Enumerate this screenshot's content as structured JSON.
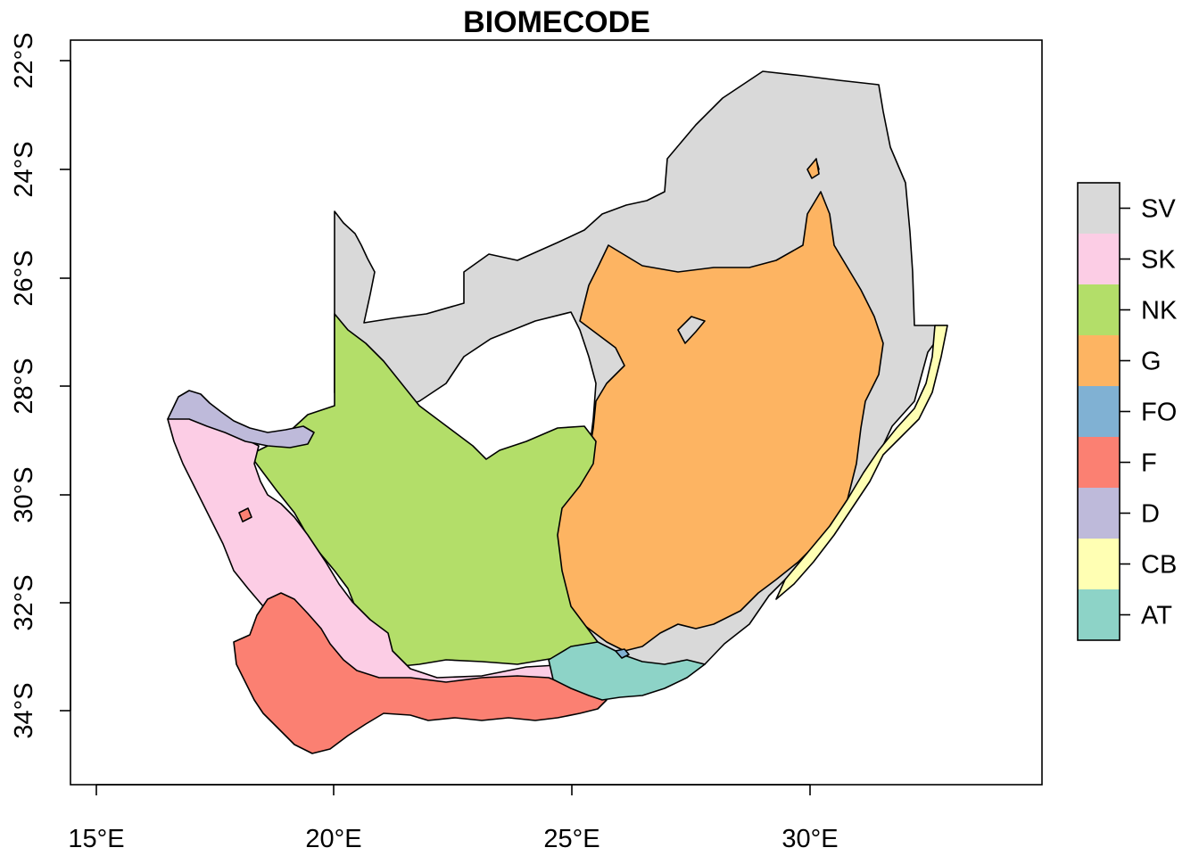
{
  "chart_data": {
    "type": "map",
    "title": "BIOMECODE",
    "x_ticks": [
      "15°E",
      "20°E",
      "25°E",
      "30°E"
    ],
    "y_ticks": [
      "22°S",
      "24°S",
      "26°S",
      "28°S",
      "30°S",
      "32°S",
      "34°S"
    ],
    "legend": {
      "placement": "right",
      "items": [
        {
          "code": "SV",
          "color": "#D9D9D9"
        },
        {
          "code": "SK",
          "color": "#FCCDE5"
        },
        {
          "code": "NK",
          "color": "#B3DE69"
        },
        {
          "code": "G",
          "color": "#FDB462"
        },
        {
          "code": "FO",
          "color": "#80B1D3"
        },
        {
          "code": "F",
          "color": "#FB8072"
        },
        {
          "code": "D",
          "color": "#BEBADA"
        },
        {
          "code": "CB",
          "color": "#FFFFB3"
        },
        {
          "code": "AT",
          "color": "#8DD3C7"
        }
      ]
    }
  }
}
